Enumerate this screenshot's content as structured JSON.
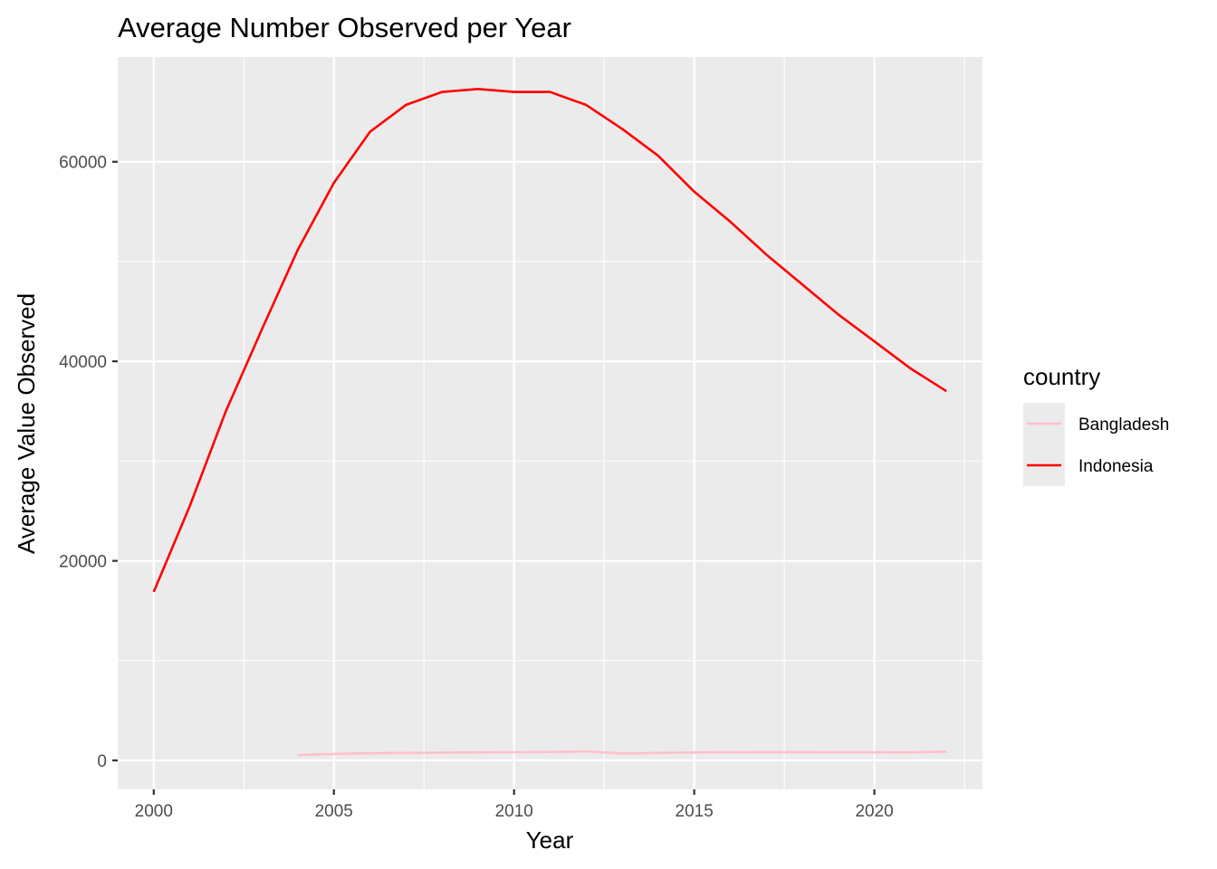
{
  "chart_data": {
    "type": "line",
    "title": "Average Number Observed per Year",
    "xlabel": "Year",
    "ylabel": "Average Value Observed",
    "xlim": [
      1999,
      2023
    ],
    "ylim": [
      -2900,
      70500
    ],
    "x_ticks": [
      2000,
      2005,
      2010,
      2015,
      2020
    ],
    "x_tick_labels": [
      "2000",
      "2005",
      "2010",
      "2015",
      "2020"
    ],
    "x_minor_ticks": [
      2002.5,
      2007.5,
      2012.5,
      2017.5,
      2022.5
    ],
    "y_ticks": [
      0,
      20000,
      40000,
      60000
    ],
    "y_tick_labels": [
      "0",
      "20000",
      "40000",
      "60000"
    ],
    "y_minor_ticks": [
      10000,
      30000,
      50000
    ],
    "grid": true,
    "legend": {
      "title": "country",
      "position": "right"
    },
    "series": [
      {
        "name": "Bangladesh",
        "color": "#FFC0CB",
        "points": [
          [
            2004,
            550
          ],
          [
            2005,
            650
          ],
          [
            2006,
            720
          ],
          [
            2007,
            750
          ],
          [
            2008,
            780
          ],
          [
            2009,
            800
          ],
          [
            2010,
            820
          ],
          [
            2011,
            850
          ],
          [
            2012,
            900
          ],
          [
            2013,
            700
          ],
          [
            2014,
            750
          ],
          [
            2015,
            800
          ],
          [
            2016,
            820
          ],
          [
            2017,
            830
          ],
          [
            2018,
            830
          ],
          [
            2019,
            820
          ],
          [
            2020,
            810
          ],
          [
            2021,
            800
          ],
          [
            2022,
            880
          ]
        ]
      },
      {
        "name": "Indonesia",
        "color": "#FF0000",
        "points": [
          [
            2000,
            16900
          ],
          [
            2001,
            25500
          ],
          [
            2002,
            35000
          ],
          [
            2003,
            43200
          ],
          [
            2004,
            51200
          ],
          [
            2005,
            57900
          ],
          [
            2006,
            63000
          ],
          [
            2007,
            65700
          ],
          [
            2008,
            67000
          ],
          [
            2009,
            67300
          ],
          [
            2010,
            67000
          ],
          [
            2011,
            67000
          ],
          [
            2012,
            65700
          ],
          [
            2013,
            63300
          ],
          [
            2014,
            60600
          ],
          [
            2015,
            57000
          ],
          [
            2016,
            54000
          ],
          [
            2017,
            50700
          ],
          [
            2018,
            47700
          ],
          [
            2019,
            44700
          ],
          [
            2020,
            42000
          ],
          [
            2021,
            39300
          ],
          [
            2022,
            37000
          ]
        ]
      }
    ]
  }
}
